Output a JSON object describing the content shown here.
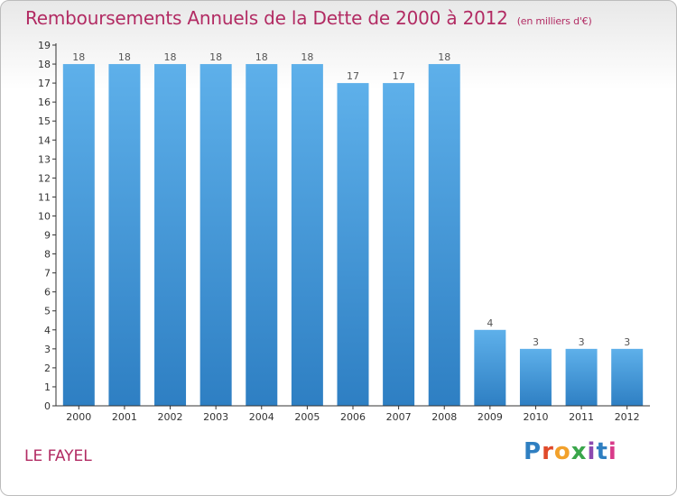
{
  "title": "Remboursements Annuels de la Dette de 2000 à 2012",
  "unit": "(en milliers d'€)",
  "commune": "LE FAYEL",
  "logo": [
    "P",
    "r",
    "o",
    "x",
    "i",
    "t",
    "i"
  ],
  "colors": {
    "bar": "#4d9fdf",
    "title": "#b22b63",
    "axis": "#333333"
  },
  "chart_data": {
    "type": "bar",
    "categories": [
      "2000",
      "2001",
      "2002",
      "2003",
      "2004",
      "2005",
      "2006",
      "2007",
      "2008",
      "2009",
      "2010",
      "2011",
      "2012"
    ],
    "values": [
      18,
      18,
      18,
      18,
      18,
      18,
      17,
      17,
      18,
      4,
      3,
      3,
      3
    ],
    "data_labels": [
      "18",
      "18",
      "18",
      "18",
      "18",
      "18",
      "17",
      "17",
      "18",
      "4",
      "3",
      "3",
      "3"
    ],
    "ylim": [
      0,
      19
    ],
    "yticks": [
      "0",
      "1",
      "2",
      "3",
      "4",
      "5",
      "6",
      "7",
      "8",
      "9",
      "10",
      "11",
      "12",
      "13",
      "14",
      "15",
      "16",
      "17",
      "18",
      "19"
    ],
    "grid": false
  }
}
